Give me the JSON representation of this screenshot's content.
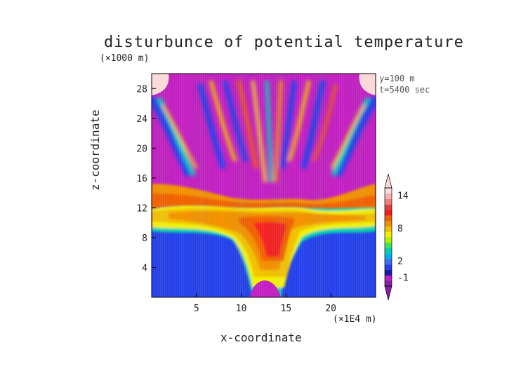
{
  "chart_data": {
    "type": "heatmap",
    "title": "disturbunce of potential temperature",
    "xlabel": "x-coordinate",
    "ylabel": "z-coordinate",
    "x_unit": "(×1E4 m)",
    "y_unit": "(×1000 m)",
    "annotations": [
      "y=100 m",
      "t=5400 sec"
    ],
    "x_ticks": [
      5,
      10,
      15,
      20
    ],
    "y_ticks": [
      4,
      8,
      12,
      16,
      20,
      24,
      28
    ],
    "xlim": [
      0,
      25
    ],
    "ylim": [
      0,
      30
    ],
    "colorbar": {
      "tick_labels": [
        "14",
        "8",
        "2",
        "-1"
      ],
      "levels": [
        -2,
        -1,
        0,
        1,
        2,
        3,
        4,
        5,
        6,
        7,
        8,
        9,
        10,
        11,
        12,
        13,
        14,
        15
      ],
      "colors": [
        "#8a1fa8",
        "#c020c0",
        "#1a1aa8",
        "#2440e8",
        "#3a70f0",
        "#00b0e8",
        "#00d0b0",
        "#40e060",
        "#b0f000",
        "#f0f000",
        "#f0c000",
        "#f09000",
        "#f06000",
        "#f02020",
        "#e04040",
        "#f08080",
        "#f8b0b0",
        "#fcd8d8"
      ],
      "extend": "both"
    }
  }
}
